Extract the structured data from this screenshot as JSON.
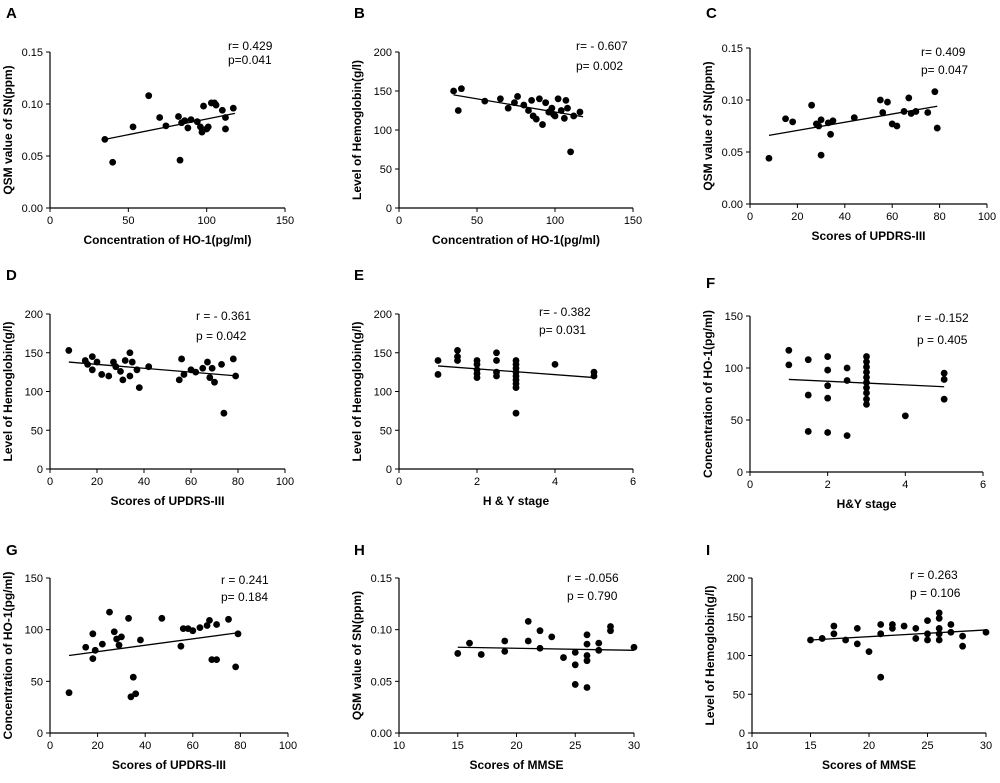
{
  "chart_data": [
    {
      "panel": "A",
      "type": "scatter",
      "xlabel": "Concentration of HO-1(pg/ml)",
      "ylabel": "QSM value of SN(ppm)",
      "xlim": [
        0,
        150
      ],
      "ylim": [
        0.0,
        0.15
      ],
      "xticks": [
        "0",
        "50",
        "100",
        "150"
      ],
      "yticks": [
        "0.00",
        "0.05",
        "0.10",
        "0.15"
      ],
      "stats": [
        "r= 0.429",
        "p=0.041"
      ],
      "fit_line": [
        [
          35,
          0.066
        ],
        [
          118,
          0.091
        ]
      ],
      "points": [
        [
          35,
          0.066
        ],
        [
          40,
          0.044
        ],
        [
          53,
          0.078
        ],
        [
          63,
          0.108
        ],
        [
          70,
          0.087
        ],
        [
          74,
          0.079
        ],
        [
          82,
          0.088
        ],
        [
          83,
          0.046
        ],
        [
          84,
          0.082
        ],
        [
          86,
          0.084
        ],
        [
          88,
          0.077
        ],
        [
          90,
          0.085
        ],
        [
          94,
          0.083
        ],
        [
          96,
          0.078
        ],
        [
          97,
          0.073
        ],
        [
          98,
          0.098
        ],
        [
          100,
          0.076
        ],
        [
          101,
          0.078
        ],
        [
          103,
          0.101
        ],
        [
          105,
          0.101
        ],
        [
          106,
          0.099
        ],
        [
          110,
          0.094
        ],
        [
          112,
          0.087
        ],
        [
          112,
          0.076
        ],
        [
          117,
          0.096
        ]
      ]
    },
    {
      "panel": "B",
      "type": "scatter",
      "xlabel": "Concentration of HO-1(pg/ml)",
      "ylabel": "Level of Hemoglobin(g/l)",
      "xlim": [
        0,
        150
      ],
      "ylim": [
        0,
        200
      ],
      "xticks": [
        "0",
        "50",
        "100",
        "150"
      ],
      "yticks": [
        "0",
        "50",
        "100",
        "150",
        "200"
      ],
      "stats": [
        "r= - 0.607",
        "p= 0.002"
      ],
      "fit_line": [
        [
          35,
          145
        ],
        [
          118,
          117
        ]
      ],
      "points": [
        [
          35,
          150
        ],
        [
          38,
          125
        ],
        [
          40,
          153
        ],
        [
          55,
          137
        ],
        [
          65,
          140
        ],
        [
          70,
          128
        ],
        [
          74,
          135
        ],
        [
          76,
          143
        ],
        [
          80,
          132
        ],
        [
          83,
          125
        ],
        [
          85,
          138
        ],
        [
          86,
          118
        ],
        [
          88,
          114
        ],
        [
          90,
          140
        ],
        [
          92,
          107
        ],
        [
          94,
          135
        ],
        [
          96,
          123
        ],
        [
          98,
          128
        ],
        [
          99,
          120
        ],
        [
          100,
          118
        ],
        [
          102,
          140
        ],
        [
          104,
          125
        ],
        [
          106,
          115
        ],
        [
          107,
          138
        ],
        [
          108,
          128
        ],
        [
          110,
          72
        ],
        [
          112,
          118
        ],
        [
          116,
          123
        ]
      ]
    },
    {
      "panel": "C",
      "type": "scatter",
      "xlabel": "Scores of UPDRS-III",
      "ylabel": "QSM value of SN(ppm)",
      "xlim": [
        0,
        100
      ],
      "ylim": [
        0.0,
        0.15
      ],
      "xticks": [
        "0",
        "20",
        "40",
        "60",
        "80",
        "100"
      ],
      "yticks": [
        "0.00",
        "0.05",
        "0.10",
        "0.15"
      ],
      "stats": [
        "r= 0.409",
        "p= 0.047"
      ],
      "fit_line": [
        [
          8,
          0.066
        ],
        [
          79,
          0.094
        ]
      ],
      "points": [
        [
          8,
          0.044
        ],
        [
          15,
          0.082
        ],
        [
          18,
          0.079
        ],
        [
          26,
          0.095
        ],
        [
          28,
          0.077
        ],
        [
          29,
          0.075
        ],
        [
          30,
          0.047
        ],
        [
          30,
          0.081
        ],
        [
          33,
          0.078
        ],
        [
          34,
          0.067
        ],
        [
          35,
          0.08
        ],
        [
          44,
          0.083
        ],
        [
          55,
          0.1
        ],
        [
          56,
          0.088
        ],
        [
          58,
          0.098
        ],
        [
          60,
          0.077
        ],
        [
          62,
          0.075
        ],
        [
          65,
          0.089
        ],
        [
          67,
          0.102
        ],
        [
          68,
          0.087
        ],
        [
          70,
          0.089
        ],
        [
          75,
          0.088
        ],
        [
          78,
          0.108
        ],
        [
          79,
          0.073
        ]
      ]
    },
    {
      "panel": "D",
      "type": "scatter",
      "xlabel": "Scores of UPDRS-III",
      "ylabel": "Level of Hemoglobin(g/l)",
      "xlim": [
        0,
        100
      ],
      "ylim": [
        0,
        200
      ],
      "xticks": [
        "0",
        "20",
        "40",
        "60",
        "80",
        "100"
      ],
      "yticks": [
        "0",
        "50",
        "100",
        "150",
        "200"
      ],
      "stats": [
        "r = - 0.361",
        "p = 0.042"
      ],
      "fit_line": [
        [
          8,
          138
        ],
        [
          80,
          120
        ]
      ],
      "points": [
        [
          8,
          153
        ],
        [
          15,
          140
        ],
        [
          16,
          135
        ],
        [
          18,
          145
        ],
        [
          18,
          128
        ],
        [
          20,
          138
        ],
        [
          22,
          122
        ],
        [
          25,
          120
        ],
        [
          27,
          138
        ],
        [
          28,
          132
        ],
        [
          30,
          126
        ],
        [
          31,
          115
        ],
        [
          32,
          140
        ],
        [
          34,
          120
        ],
        [
          34,
          150
        ],
        [
          35,
          138
        ],
        [
          37,
          128
        ],
        [
          38,
          105
        ],
        [
          42,
          132
        ],
        [
          55,
          115
        ],
        [
          56,
          142
        ],
        [
          57,
          122
        ],
        [
          60,
          128
        ],
        [
          62,
          125
        ],
        [
          65,
          130
        ],
        [
          67,
          138
        ],
        [
          68,
          118
        ],
        [
          69,
          130
        ],
        [
          70,
          112
        ],
        [
          73,
          135
        ],
        [
          74,
          72
        ],
        [
          78,
          142
        ],
        [
          79,
          120
        ]
      ]
    },
    {
      "panel": "E",
      "type": "scatter",
      "xlabel": "H & Y stage",
      "ylabel": "Level of Hemoglobin(g/l)",
      "xlim": [
        0,
        6
      ],
      "ylim": [
        0,
        200
      ],
      "xticks": [
        "0",
        "2",
        "4",
        "6"
      ],
      "yticks": [
        "0",
        "50",
        "100",
        "150",
        "200"
      ],
      "stats": [
        "r= - 0.382",
        "p= 0.031"
      ],
      "fit_line": [
        [
          1,
          133
        ],
        [
          5,
          118
        ]
      ],
      "points": [
        [
          1,
          140
        ],
        [
          1,
          122
        ],
        [
          1.5,
          153
        ],
        [
          1.5,
          145
        ],
        [
          1.5,
          140
        ],
        [
          2,
          140
        ],
        [
          2,
          135
        ],
        [
          2,
          128
        ],
        [
          2,
          123
        ],
        [
          2,
          118
        ],
        [
          2.5,
          150
        ],
        [
          2.5,
          140
        ],
        [
          2.5,
          125
        ],
        [
          2.5,
          120
        ],
        [
          3,
          140
        ],
        [
          3,
          135
        ],
        [
          3,
          130
        ],
        [
          3,
          125
        ],
        [
          3,
          120
        ],
        [
          3,
          115
        ],
        [
          3,
          110
        ],
        [
          3,
          105
        ],
        [
          3,
          72
        ],
        [
          4,
          135
        ],
        [
          5,
          125
        ],
        [
          5,
          120
        ]
      ]
    },
    {
      "panel": "F",
      "type": "scatter",
      "xlabel": "H&Y stage",
      "ylabel": "Concentration of HO-1(pg/ml)",
      "xlim": [
        0,
        6
      ],
      "ylim": [
        0,
        150
      ],
      "xticks": [
        "0",
        "2",
        "4",
        "6"
      ],
      "yticks": [
        "0",
        "50",
        "100",
        "150"
      ],
      "stats": [
        "r = -0.152",
        "p = 0.405"
      ],
      "fit_line": [
        [
          1,
          89
        ],
        [
          5,
          82
        ]
      ],
      "points": [
        [
          1,
          117
        ],
        [
          1,
          103
        ],
        [
          1.5,
          108
        ],
        [
          1.5,
          74
        ],
        [
          1.5,
          39
        ],
        [
          2,
          111
        ],
        [
          2,
          98
        ],
        [
          2,
          83
        ],
        [
          2,
          71
        ],
        [
          2,
          38
        ],
        [
          2.5,
          100
        ],
        [
          2.5,
          88
        ],
        [
          2.5,
          35
        ],
        [
          3,
          111
        ],
        [
          3,
          106
        ],
        [
          3,
          101
        ],
        [
          3,
          96
        ],
        [
          3,
          91
        ],
        [
          3,
          86
        ],
        [
          3,
          81
        ],
        [
          3,
          76
        ],
        [
          3,
          70
        ],
        [
          3,
          65
        ],
        [
          4,
          54
        ],
        [
          5,
          95
        ],
        [
          5,
          89
        ],
        [
          5,
          70
        ]
      ]
    },
    {
      "panel": "G",
      "type": "scatter",
      "xlabel": "Scores of UPDRS-III",
      "ylabel": "Concentration of HO-1(pg/ml)",
      "xlim": [
        0,
        100
      ],
      "ylim": [
        0,
        150
      ],
      "xticks": [
        "0",
        "20",
        "40",
        "60",
        "80",
        "100"
      ],
      "yticks": [
        "0",
        "50",
        "100",
        "150"
      ],
      "stats": [
        "r = 0.241",
        "p= 0.184"
      ],
      "fit_line": [
        [
          8,
          75
        ],
        [
          79,
          97
        ]
      ],
      "points": [
        [
          8,
          39
        ],
        [
          15,
          83
        ],
        [
          18,
          72
        ],
        [
          18,
          96
        ],
        [
          19,
          80
        ],
        [
          22,
          86
        ],
        [
          25,
          117
        ],
        [
          27,
          98
        ],
        [
          28,
          91
        ],
        [
          29,
          85
        ],
        [
          30,
          93
        ],
        [
          33,
          111
        ],
        [
          34,
          35
        ],
        [
          35,
          54
        ],
        [
          36,
          38
        ],
        [
          38,
          90
        ],
        [
          47,
          111
        ],
        [
          55,
          84
        ],
        [
          56,
          101
        ],
        [
          58,
          101
        ],
        [
          60,
          99
        ],
        [
          63,
          102
        ],
        [
          66,
          104
        ],
        [
          67,
          109
        ],
        [
          68,
          71
        ],
        [
          70,
          71
        ],
        [
          70,
          105
        ],
        [
          75,
          110
        ],
        [
          78,
          64
        ],
        [
          79,
          96
        ]
      ]
    },
    {
      "panel": "H",
      "type": "scatter",
      "xlabel": "Scores of MMSE",
      "ylabel": "QSM value of SN(ppm)",
      "xlim": [
        10,
        30
      ],
      "ylim": [
        0.0,
        0.15
      ],
      "xticks": [
        "10",
        "15",
        "20",
        "25",
        "30"
      ],
      "yticks": [
        "0.00",
        "0.05",
        "0.10",
        "0.15"
      ],
      "stats": [
        "r = -0.056",
        "p = 0.790"
      ],
      "fit_line": [
        [
          15,
          0.083
        ],
        [
          30,
          0.08
        ]
      ],
      "points": [
        [
          15,
          0.077
        ],
        [
          16,
          0.087
        ],
        [
          17,
          0.076
        ],
        [
          19,
          0.079
        ],
        [
          19,
          0.089
        ],
        [
          21,
          0.108
        ],
        [
          21,
          0.089
        ],
        [
          22,
          0.082
        ],
        [
          22,
          0.099
        ],
        [
          23,
          0.093
        ],
        [
          24,
          0.073
        ],
        [
          25,
          0.078
        ],
        [
          25,
          0.066
        ],
        [
          25,
          0.047
        ],
        [
          26,
          0.095
        ],
        [
          26,
          0.086
        ],
        [
          26,
          0.075
        ],
        [
          26,
          0.044
        ],
        [
          26,
          0.07
        ],
        [
          27,
          0.08
        ],
        [
          27,
          0.087
        ],
        [
          28,
          0.103
        ],
        [
          28,
          0.099
        ],
        [
          30,
          0.083
        ]
      ]
    },
    {
      "panel": "I",
      "type": "scatter",
      "xlabel": "Scores of MMSE",
      "ylabel": "Level of Hemoglobin(g/l)",
      "xlim": [
        10,
        30
      ],
      "ylim": [
        0,
        200
      ],
      "xticks": [
        "10",
        "15",
        "20",
        "25",
        "30"
      ],
      "yticks": [
        "0",
        "50",
        "100",
        "150",
        "200"
      ],
      "stats": [
        "r = 0.263",
        "p = 0.106"
      ],
      "fit_line": [
        [
          15,
          120
        ],
        [
          30,
          133
        ]
      ],
      "points": [
        [
          15,
          120
        ],
        [
          16,
          122
        ],
        [
          17,
          138
        ],
        [
          17,
          128
        ],
        [
          18,
          120
        ],
        [
          19,
          135
        ],
        [
          19,
          115
        ],
        [
          20,
          105
        ],
        [
          21,
          140
        ],
        [
          21,
          128
        ],
        [
          21,
          72
        ],
        [
          22,
          140
        ],
        [
          22,
          135
        ],
        [
          23,
          138
        ],
        [
          24,
          135
        ],
        [
          24,
          122
        ],
        [
          25,
          145
        ],
        [
          25,
          128
        ],
        [
          25,
          120
        ],
        [
          26,
          155
        ],
        [
          26,
          148
        ],
        [
          26,
          135
        ],
        [
          26,
          128
        ],
        [
          26,
          120
        ],
        [
          27,
          140
        ],
        [
          27,
          130
        ],
        [
          28,
          125
        ],
        [
          28,
          112
        ],
        [
          30,
          130
        ]
      ]
    }
  ]
}
